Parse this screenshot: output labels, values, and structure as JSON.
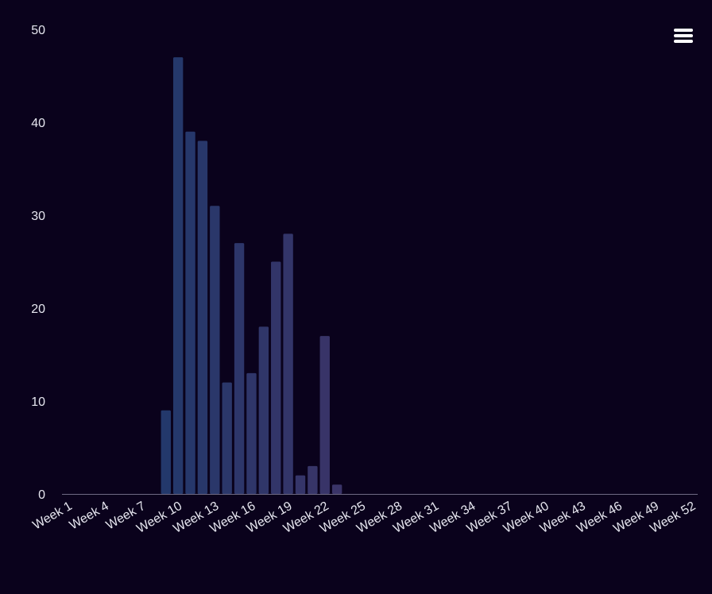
{
  "chart_data": {
    "type": "bar",
    "categories": [
      "Week 1",
      "Week 2",
      "Week 3",
      "Week 4",
      "Week 5",
      "Week 6",
      "Week 7",
      "Week 8",
      "Week 9",
      "Week 10",
      "Week 11",
      "Week 12",
      "Week 13",
      "Week 14",
      "Week 15",
      "Week 16",
      "Week 17",
      "Week 18",
      "Week 19",
      "Week 20",
      "Week 21",
      "Week 22",
      "Week 23",
      "Week 24",
      "Week 25",
      "Week 26",
      "Week 27",
      "Week 28",
      "Week 29",
      "Week 30",
      "Week 31",
      "Week 32",
      "Week 33",
      "Week 34",
      "Week 35",
      "Week 36",
      "Week 37",
      "Week 38",
      "Week 39",
      "Week 40",
      "Week 41",
      "Week 42",
      "Week 43",
      "Week 44",
      "Week 45",
      "Week 46",
      "Week 47",
      "Week 48",
      "Week 49",
      "Week 50",
      "Week 51",
      "Week 52"
    ],
    "x_tick_labels": [
      "Week 1",
      "Week 4",
      "Week 7",
      "Week 10",
      "Week 13",
      "Week 16",
      "Week 19",
      "Week 22",
      "Week 25",
      "Week 28",
      "Week 31",
      "Week 34",
      "Week 37",
      "Week 40",
      "Week 43",
      "Week 46",
      "Week 49",
      "Week 52"
    ],
    "values": [
      0,
      0,
      0,
      0,
      0,
      0,
      0,
      0,
      9,
      47,
      39,
      38,
      31,
      12,
      27,
      13,
      18,
      25,
      28,
      2,
      3,
      17,
      1,
      0,
      0,
      0,
      0,
      0,
      0,
      0,
      0,
      0,
      0,
      0,
      0,
      0,
      0,
      0,
      0,
      0,
      0,
      0,
      0,
      0,
      0,
      0,
      0,
      0,
      0,
      0,
      0,
      0
    ],
    "title": "",
    "xlabel": "",
    "ylabel": "",
    "ylim": [
      0,
      50
    ],
    "y_ticks": [
      "0",
      "10",
      "20",
      "30",
      "40",
      "50"
    ],
    "grid": false,
    "colors": {
      "background": "#0a021c",
      "bar_start": "#23386b",
      "bar_end": "#3a3468",
      "axis_line": "#6f6a84",
      "text": "#e6e6ef"
    }
  },
  "toolbar": {
    "menu_icon": "hamburger-menu-icon"
  }
}
